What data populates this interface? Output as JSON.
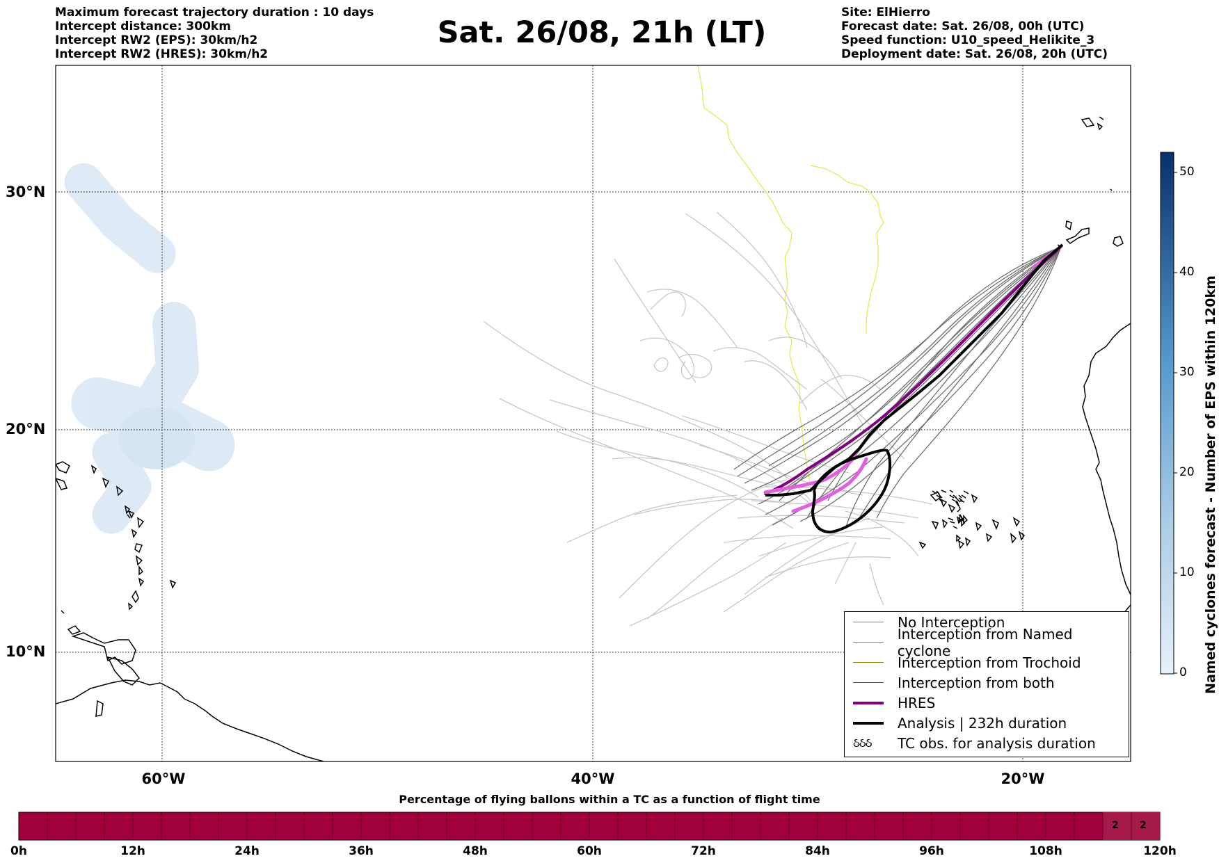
{
  "header_left": [
    "Maximum forecast trajectory duration : 10 days",
    "Intercept distance: 300km",
    "Intercept RW2 (EPS):  30km/h2",
    "Intercept RW2 (HRES): 30km/h2"
  ],
  "title": "Sat. 26/08, 21h (LT)",
  "header_right": [
    "Site: ElHierro",
    "Forecast date: Sat. 26/08, 00h (UTC)",
    "Speed function: U10_speed_Helikite_3",
    "Deployment date: Sat. 26/08, 20h (UTC)"
  ],
  "map": {
    "lat_labels": [
      "30°N",
      "20°N",
      "10°N"
    ],
    "lon_labels": [
      "60°W",
      "40°W",
      "20°W"
    ]
  },
  "legend": {
    "items": [
      {
        "label": "No Interception",
        "color": "#808080"
      },
      {
        "label": "Interception from Named cyclone",
        "color": "#ff5a1e"
      },
      {
        "label": "Interception from Trochoid",
        "color": "#808000"
      },
      {
        "label": "Interception from both",
        "color": "#008000"
      },
      {
        "label": "HRES",
        "color": "#800080"
      },
      {
        "label": "Analysis | 232h duration",
        "color": "#000000"
      },
      {
        "label": "TC obs. for analysis duration",
        "symbol": "ઠઠઠ"
      }
    ]
  },
  "colorbar": {
    "label": "Named cyclones forecast - Number of EPS within 120km",
    "ticks": [
      "0",
      "10",
      "20",
      "30",
      "40",
      "50"
    ],
    "min": 0,
    "max": 52
  },
  "timeline": {
    "title": "Percentage of flying ballons within a TC as a function of flight time",
    "labels": [
      "0h",
      "12h",
      "24h",
      "36h",
      "48h",
      "60h",
      "72h",
      "84h",
      "96h",
      "108h",
      "120h"
    ],
    "bar_color": "#a0003c",
    "cell_values": [
      "2",
      "2"
    ]
  }
}
